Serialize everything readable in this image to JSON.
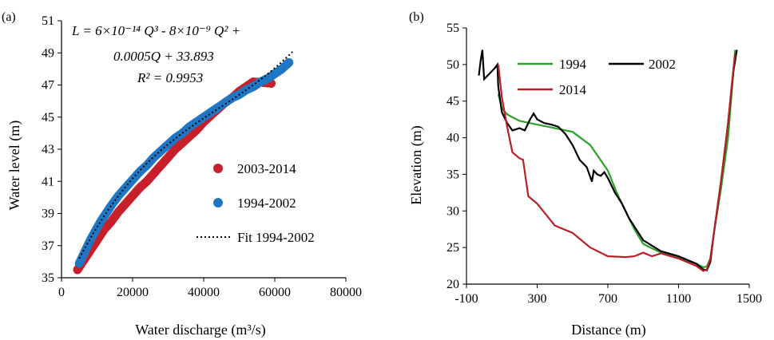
{
  "chart_data": [
    {
      "type": "scatter",
      "panel_label": "(a)",
      "xlabel": "Water discharge (m³/s)",
      "ylabel": "Water level (m)",
      "xlim": [
        0,
        80000
      ],
      "ylim": [
        35,
        51
      ],
      "x_ticks": [
        "0",
        "20000",
        "40000",
        "60000",
        "80000"
      ],
      "y_ticks": [
        "35",
        "37",
        "39",
        "41",
        "43",
        "45",
        "47",
        "49",
        "51"
      ],
      "equation_lines": [
        "L = 6×10⁻¹⁴ Q³ - 8×10⁻⁹ Q² +",
        "0.0005Q + 33.893",
        "R² = 0.9953"
      ],
      "fit_coefficients": {
        "a3": 6e-14,
        "a2": -8e-09,
        "a1": 0.0005,
        "a0": 33.893,
        "x_range": [
          5000,
          65000
        ]
      },
      "legend_placement": "right",
      "series": [
        {
          "name": "2003-2014",
          "color": "#c8202a",
          "x": [
            4500,
            6000,
            7500,
            9000,
            10500,
            12000,
            14000,
            16000,
            18000,
            20000,
            22000,
            24000,
            26000,
            28000,
            30000,
            32000,
            34000,
            36000,
            38000,
            40000,
            42000,
            44000,
            46000,
            48000,
            50000,
            52000,
            54000,
            59000
          ],
          "y": [
            35.5,
            36.0,
            36.5,
            37.0,
            37.5,
            38.0,
            38.5,
            39.1,
            39.6,
            40.1,
            40.6,
            41.0,
            41.5,
            42.0,
            42.5,
            43.0,
            43.4,
            43.8,
            44.2,
            44.7,
            45.1,
            45.5,
            45.9,
            46.2,
            46.6,
            46.9,
            47.2,
            47.1
          ]
        },
        {
          "name": "1994-2002",
          "color": "#1f77c4",
          "x": [
            5000,
            6500,
            8000,
            9500,
            11000,
            12500,
            14000,
            16000,
            18000,
            20000,
            22000,
            24000,
            26000,
            28000,
            30000,
            32000,
            34000,
            36000,
            38000,
            40000,
            42000,
            44000,
            46000,
            48000,
            50000,
            52000,
            54000,
            56000,
            58000,
            60000,
            62000,
            64000
          ],
          "y": [
            35.9,
            36.6,
            37.3,
            37.9,
            38.5,
            39.0,
            39.5,
            40.1,
            40.6,
            41.1,
            41.6,
            42.0,
            42.5,
            42.9,
            43.3,
            43.7,
            44.0,
            44.4,
            44.7,
            45.0,
            45.3,
            45.6,
            45.9,
            46.2,
            46.4,
            46.7,
            46.9,
            47.2,
            47.4,
            47.7,
            48.0,
            48.4
          ]
        },
        {
          "name": "Fit 1994-2002",
          "color": "#000000",
          "style": "dotted",
          "kind": "fit"
        }
      ]
    },
    {
      "type": "line",
      "panel_label": "(b)",
      "xlabel": "Distance (m)",
      "ylabel": "Elevation (m)",
      "xlim": [
        -100,
        1500
      ],
      "ylim": [
        20,
        55
      ],
      "x_ticks": [
        "-100",
        "300",
        "700",
        "1100",
        "1500"
      ],
      "y_ticks": [
        "20",
        "25",
        "30",
        "35",
        "40",
        "45",
        "50",
        "55"
      ],
      "legend_placement": "top",
      "series": [
        {
          "name": "1994",
          "color": "#2ca02c",
          "x": [
            80,
            100,
            130,
            160,
            200,
            300,
            400,
            500,
            600,
            700,
            750,
            800,
            850,
            900,
            1000,
            1100,
            1200,
            1240,
            1260,
            1280,
            1300,
            1340,
            1380,
            1400,
            1420
          ],
          "y": [
            46,
            44,
            43.2,
            42.8,
            42.3,
            41.8,
            41.3,
            40.8,
            39.0,
            35.5,
            32.5,
            30.0,
            27.5,
            25.5,
            24.3,
            23.6,
            22.8,
            22.3,
            22.4,
            23.5,
            27,
            33,
            40,
            46,
            52
          ]
        },
        {
          "name": "2002",
          "color": "#000000",
          "x": [
            -30,
            -20,
            -10,
            0,
            20,
            40,
            60,
            75,
            80,
            100,
            130,
            160,
            200,
            230,
            260,
            280,
            300,
            340,
            380,
            420,
            460,
            500,
            540,
            580,
            610,
            620,
            640,
            660,
            680,
            700,
            740,
            780,
            820,
            860,
            900,
            1000,
            1100,
            1200,
            1240,
            1260,
            1280,
            1300,
            1340,
            1380,
            1410,
            1430
          ],
          "y": [
            48.5,
            50.5,
            52.0,
            48.0,
            48.5,
            49.0,
            49.5,
            50.0,
            47,
            43.5,
            42.0,
            41.0,
            41.3,
            41.0,
            42.5,
            43.3,
            42.5,
            42.0,
            41.8,
            41.5,
            40.5,
            39.0,
            37.0,
            36.0,
            34.0,
            35.5,
            35.0,
            34.8,
            35.3,
            34.5,
            32.5,
            31.0,
            29.0,
            27.5,
            26.0,
            24.5,
            23.8,
            22.8,
            22.0,
            21.9,
            23.0,
            27.0,
            34.0,
            42.0,
            49.0,
            52.0
          ]
        },
        {
          "name": "2014",
          "color": "#b82025",
          "x": [
            80,
            100,
            130,
            160,
            200,
            220,
            250,
            300,
            350,
            400,
            500,
            600,
            700,
            800,
            850,
            900,
            950,
            1000,
            1100,
            1200,
            1240,
            1260,
            1280,
            1300,
            1340,
            1380,
            1400,
            1420
          ],
          "y": [
            50,
            45.5,
            41.5,
            38.0,
            37.2,
            37.0,
            32.0,
            31.0,
            29.5,
            28.0,
            27.0,
            25.0,
            23.8,
            23.7,
            23.8,
            24.3,
            23.8,
            24.2,
            23.5,
            22.5,
            21.8,
            22.0,
            23.5,
            27.0,
            34.0,
            42.0,
            47.0,
            51.5
          ]
        }
      ]
    }
  ]
}
